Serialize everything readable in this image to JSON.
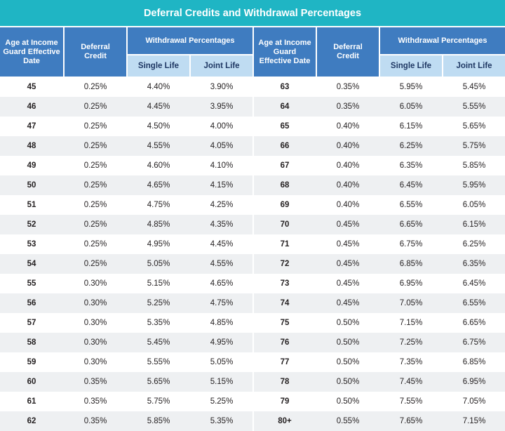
{
  "title": "Deferral Credits and Withdrawal Percentages",
  "headers": {
    "age": "Age at Income Guard Effective Date",
    "deferral": "Deferral Credit",
    "withdrawal": "Withdrawal Percentages",
    "single": "Single Life",
    "joint": "Joint Life"
  },
  "left_rows": [
    {
      "age": "45",
      "deferral": "0.25%",
      "single": "4.40%",
      "joint": "3.90%"
    },
    {
      "age": "46",
      "deferral": "0.25%",
      "single": "4.45%",
      "joint": "3.95%"
    },
    {
      "age": "47",
      "deferral": "0.25%",
      "single": "4.50%",
      "joint": "4.00%"
    },
    {
      "age": "48",
      "deferral": "0.25%",
      "single": "4.55%",
      "joint": "4.05%"
    },
    {
      "age": "49",
      "deferral": "0.25%",
      "single": "4.60%",
      "joint": "4.10%"
    },
    {
      "age": "50",
      "deferral": "0.25%",
      "single": "4.65%",
      "joint": "4.15%"
    },
    {
      "age": "51",
      "deferral": "0.25%",
      "single": "4.75%",
      "joint": "4.25%"
    },
    {
      "age": "52",
      "deferral": "0.25%",
      "single": "4.85%",
      "joint": "4.35%"
    },
    {
      "age": "53",
      "deferral": "0.25%",
      "single": "4.95%",
      "joint": "4.45%"
    },
    {
      "age": "54",
      "deferral": "0.25%",
      "single": "5.05%",
      "joint": "4.55%"
    },
    {
      "age": "55",
      "deferral": "0.30%",
      "single": "5.15%",
      "joint": "4.65%"
    },
    {
      "age": "56",
      "deferral": "0.30%",
      "single": "5.25%",
      "joint": "4.75%"
    },
    {
      "age": "57",
      "deferral": "0.30%",
      "single": "5.35%",
      "joint": "4.85%"
    },
    {
      "age": "58",
      "deferral": "0.30%",
      "single": "5.45%",
      "joint": "4.95%"
    },
    {
      "age": "59",
      "deferral": "0.30%",
      "single": "5.55%",
      "joint": "5.05%"
    },
    {
      "age": "60",
      "deferral": "0.35%",
      "single": "5.65%",
      "joint": "5.15%"
    },
    {
      "age": "61",
      "deferral": "0.35%",
      "single": "5.75%",
      "joint": "5.25%"
    },
    {
      "age": "62",
      "deferral": "0.35%",
      "single": "5.85%",
      "joint": "5.35%"
    }
  ],
  "right_rows": [
    {
      "age": "63",
      "deferral": "0.35%",
      "single": "5.95%",
      "joint": "5.45%"
    },
    {
      "age": "64",
      "deferral": "0.35%",
      "single": "6.05%",
      "joint": "5.55%"
    },
    {
      "age": "65",
      "deferral": "0.40%",
      "single": "6.15%",
      "joint": "5.65%"
    },
    {
      "age": "66",
      "deferral": "0.40%",
      "single": "6.25%",
      "joint": "5.75%"
    },
    {
      "age": "67",
      "deferral": "0.40%",
      "single": "6.35%",
      "joint": "5.85%"
    },
    {
      "age": "68",
      "deferral": "0.40%",
      "single": "6.45%",
      "joint": "5.95%"
    },
    {
      "age": "69",
      "deferral": "0.40%",
      "single": "6.55%",
      "joint": "6.05%"
    },
    {
      "age": "70",
      "deferral": "0.45%",
      "single": "6.65%",
      "joint": "6.15%"
    },
    {
      "age": "71",
      "deferral": "0.45%",
      "single": "6.75%",
      "joint": "6.25%"
    },
    {
      "age": "72",
      "deferral": "0.45%",
      "single": "6.85%",
      "joint": "6.35%"
    },
    {
      "age": "73",
      "deferral": "0.45%",
      "single": "6.95%",
      "joint": "6.45%"
    },
    {
      "age": "74",
      "deferral": "0.45%",
      "single": "7.05%",
      "joint": "6.55%"
    },
    {
      "age": "75",
      "deferral": "0.50%",
      "single": "7.15%",
      "joint": "6.65%"
    },
    {
      "age": "76",
      "deferral": "0.50%",
      "single": "7.25%",
      "joint": "6.75%"
    },
    {
      "age": "77",
      "deferral": "0.50%",
      "single": "7.35%",
      "joint": "6.85%"
    },
    {
      "age": "78",
      "deferral": "0.50%",
      "single": "7.45%",
      "joint": "6.95%"
    },
    {
      "age": "79",
      "deferral": "0.50%",
      "single": "7.55%",
      "joint": "7.05%"
    },
    {
      "age": "80+",
      "deferral": "0.55%",
      "single": "7.65%",
      "joint": "7.15%"
    }
  ],
  "colors": {
    "title_bg": "#1fb5c4",
    "header_bg": "#3f7cc0",
    "subheader_bg": "#bfdcf2",
    "row_shade": "#eef0f2"
  }
}
